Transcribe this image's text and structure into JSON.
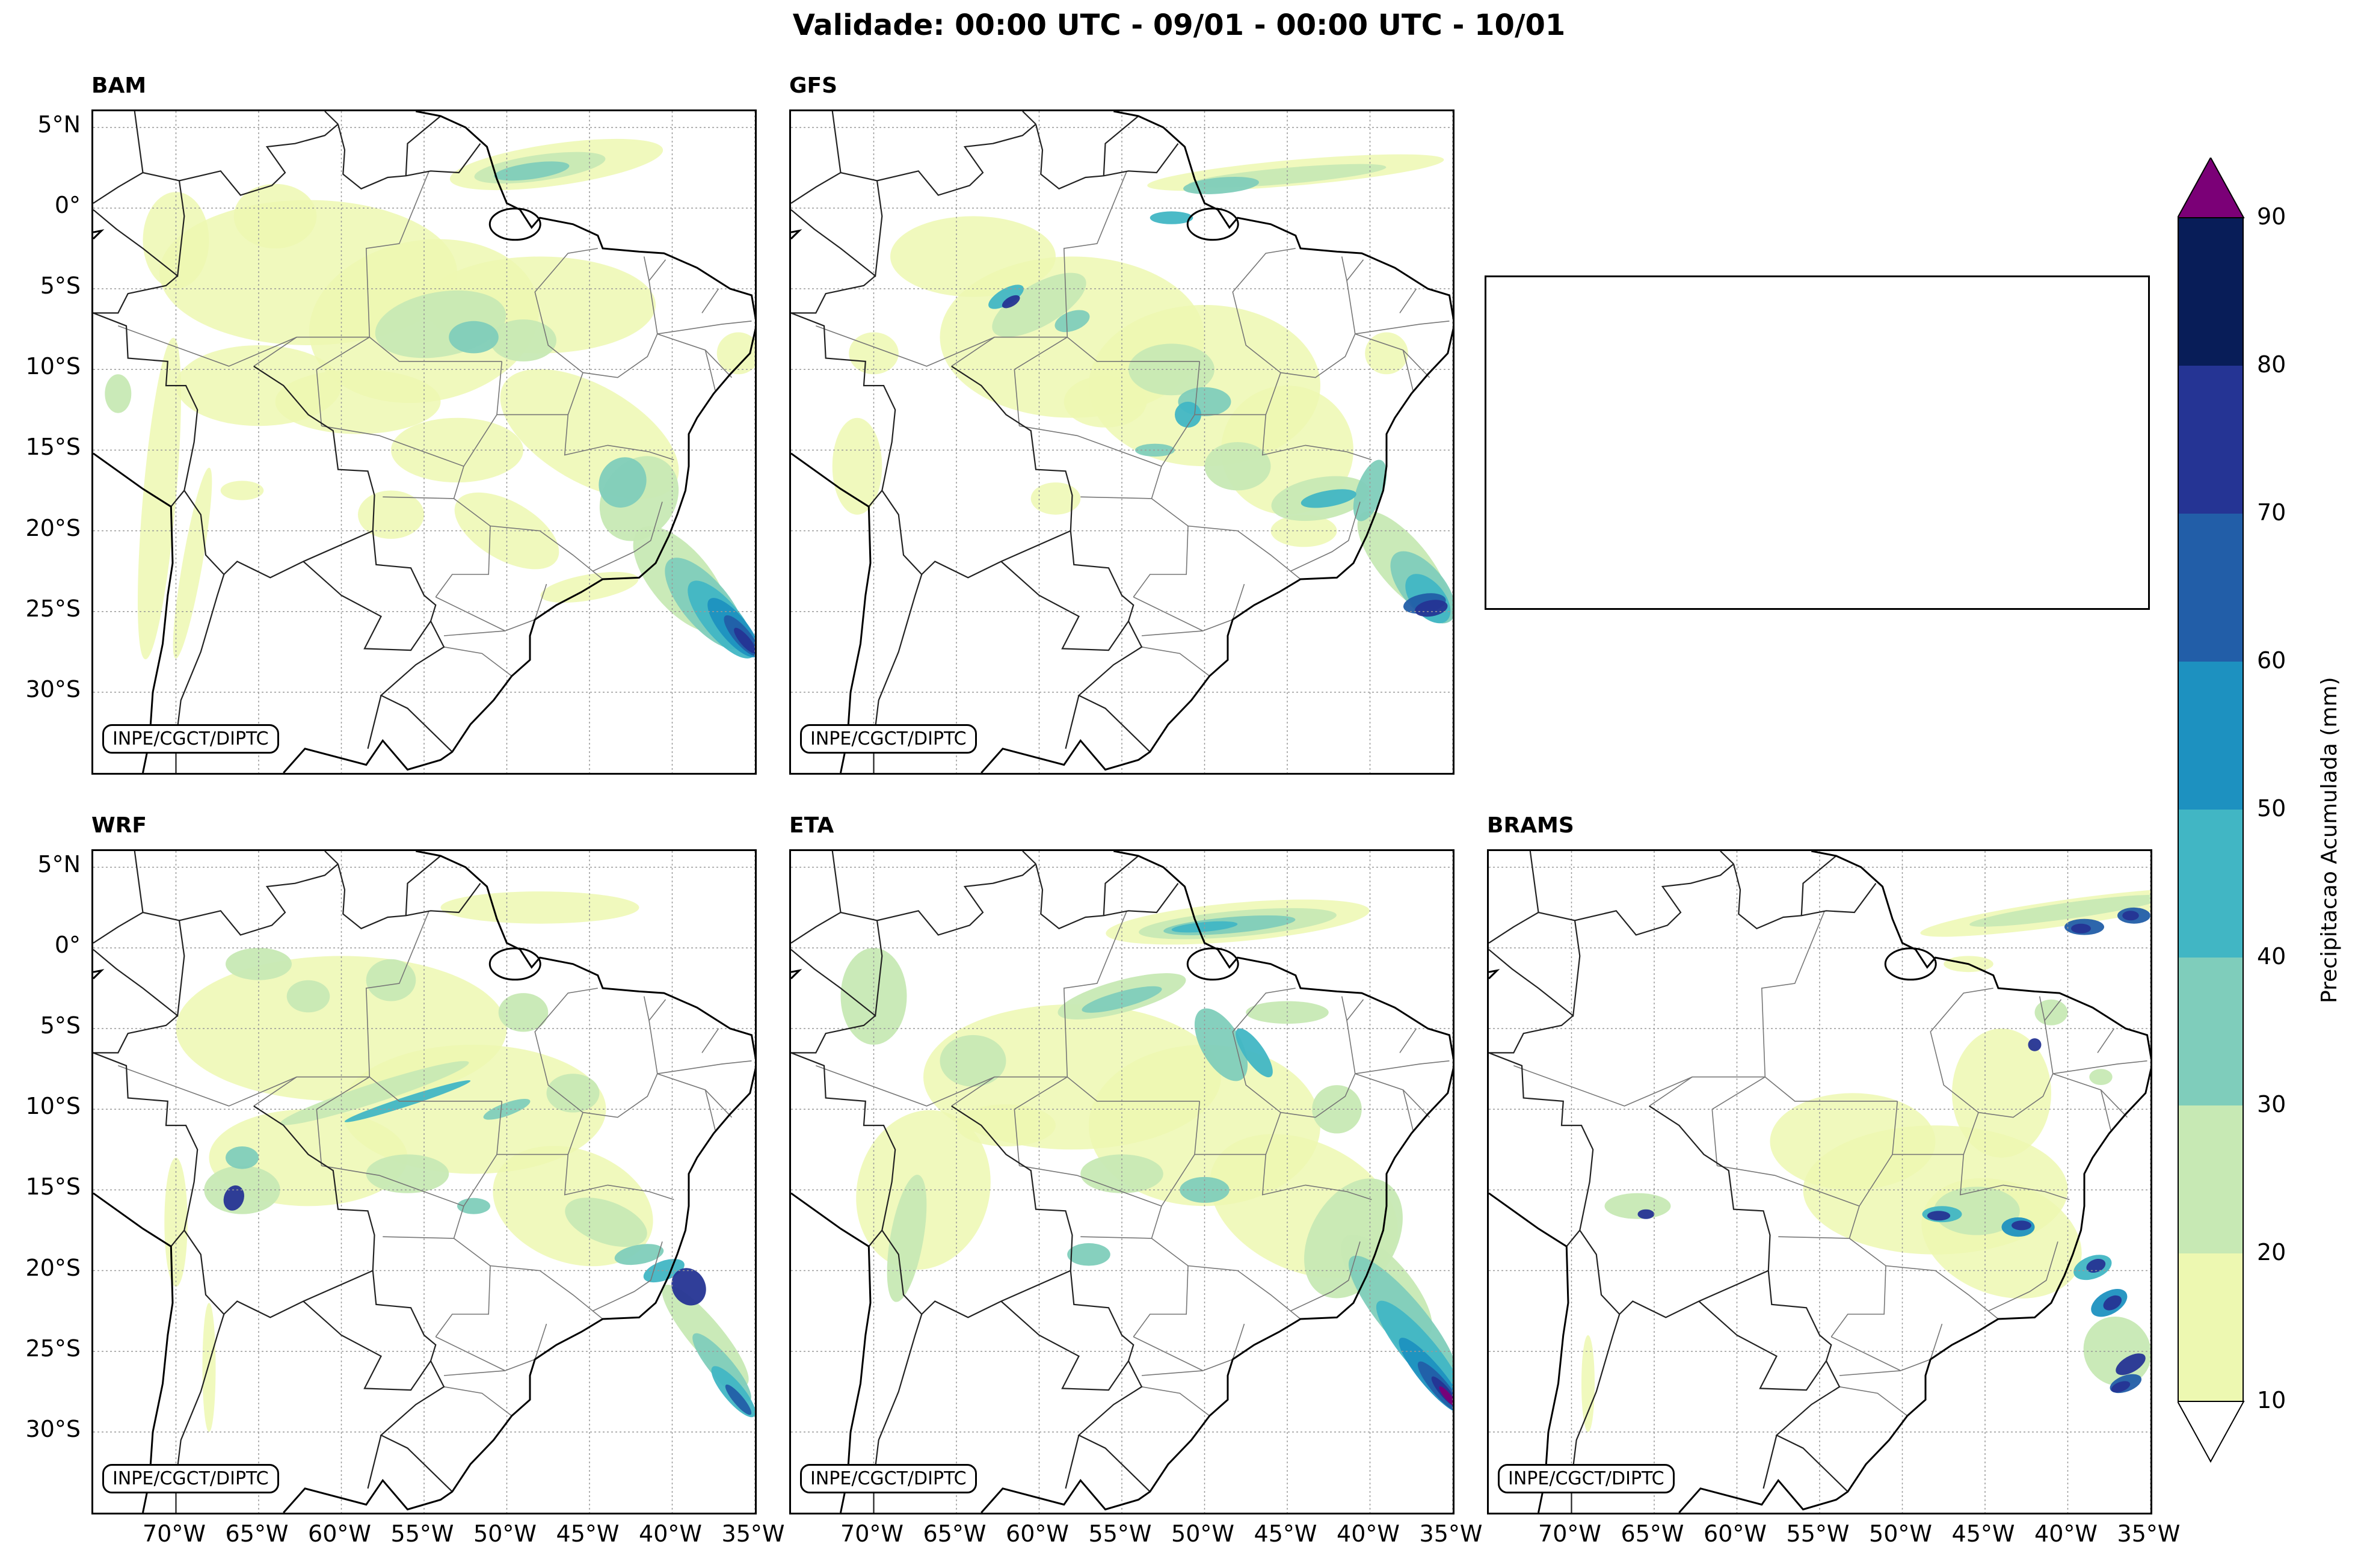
{
  "title": "Validade: 00:00 UTC - 09/01 - 00:00 UTC - 10/01",
  "panels": [
    {
      "name": "BAM",
      "credit": "INPE/CGCT/DIPTC",
      "show_y": true,
      "show_x": false
    },
    {
      "name": "GFS",
      "credit": "INPE/CGCT/DIPTC",
      "show_y": false,
      "show_x": false
    },
    {
      "name": "WRF",
      "credit": "INPE/CGCT/DIPTC",
      "show_y": true,
      "show_x": true
    },
    {
      "name": "ETA",
      "credit": "INPE/CGCT/DIPTC",
      "show_y": false,
      "show_x": true
    },
    {
      "name": "BRAMS",
      "credit": "INPE/CGCT/DIPTC",
      "show_y": false,
      "show_x": true
    }
  ],
  "lat_ticks": [
    "5°N",
    "0°",
    "5°S",
    "10°S",
    "15°S",
    "20°S",
    "25°S",
    "30°S"
  ],
  "lon_ticks": [
    "70°W",
    "65°W",
    "60°W",
    "55°W",
    "50°W",
    "45°W",
    "40°W",
    "35°W"
  ],
  "colorbar": {
    "label": "Precipitacao Acumulada (mm)",
    "ticks": [
      "10",
      "20",
      "30",
      "40",
      "50",
      "60",
      "70",
      "80",
      "90"
    ],
    "colors": [
      "#edf8b1",
      "#c7e9b4",
      "#7fcdbb",
      "#41b6c4",
      "#1d91c0",
      "#225ea8",
      "#253494",
      "#081d58"
    ],
    "over_color": "#7b0077",
    "under_color": "#ffffff"
  }
}
